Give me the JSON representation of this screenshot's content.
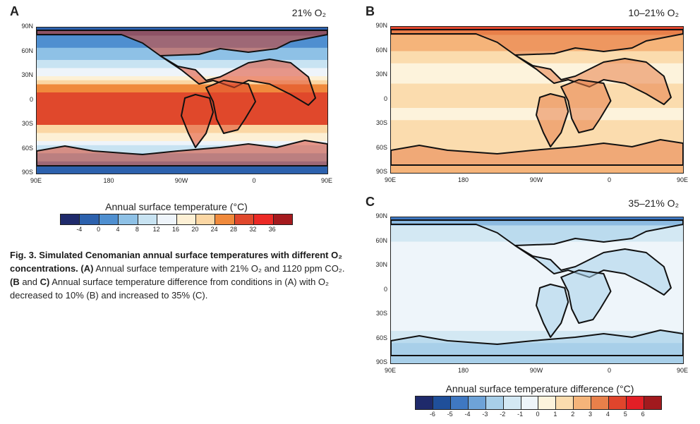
{
  "caption": {
    "fig_label": "Fig. 3.",
    "title": "Simulated Cenomanian annual surface temperatures with different O₂ concentrations.",
    "part_a_ref": "(A)",
    "part_a_text": " Annual surface temperature with 21% O₂ and 1120 ppm CO₂.",
    "part_bc_ref_b": "(B",
    "part_bc_and": " and ",
    "part_bc_ref_c": "C)",
    "part_bc_text": " Annual surface temperature difference from conditions in (A) with O₂ decreased to 10% (B) and increased to 35% (C)."
  },
  "colorbar_a": {
    "title": "Annual surface temperature (°C)",
    "labels": [
      "-4",
      "0",
      "4",
      "8",
      "12",
      "16",
      "20",
      "24",
      "28",
      "32",
      "36"
    ],
    "colors": [
      "#1f2a6b",
      "#2c61ad",
      "#4f8fd0",
      "#8ec1e6",
      "#c8e3f2",
      "#eef4fa",
      "#fdf0d5",
      "#fbd7a4",
      "#f08a3c",
      "#e0482c",
      "#ec2a26",
      "#a51a1e"
    ]
  },
  "colorbar_diff": {
    "title": "Annual surface temperature difference (°C)",
    "labels": [
      "-6",
      "-5",
      "-4",
      "-3",
      "-2",
      "-1",
      "0",
      "1",
      "2",
      "3",
      "4",
      "5",
      "6"
    ],
    "colors": [
      "#1f2a6b",
      "#1f4f9a",
      "#3f78c2",
      "#6ea3d8",
      "#a8cfe9",
      "#d3e8f3",
      "#eef5fa",
      "#fdf3dc",
      "#fbdcae",
      "#f5b47a",
      "#e8804a",
      "#e0452c",
      "#e21f26",
      "#a11a1e"
    ]
  },
  "chart_data": [
    {
      "panel": "A",
      "type": "heatmap",
      "title": "21% O₂",
      "xlabel": "",
      "ylabel": "",
      "x_ticks": [
        "90E",
        "180",
        "90W",
        "0",
        "90E"
      ],
      "y_ticks": [
        "90N",
        "60N",
        "30N",
        "0",
        "30S",
        "60S",
        "90S"
      ],
      "variable": "Annual surface temperature (°C)",
      "zonal_bands_lat_top": [
        90,
        80,
        65,
        50,
        40,
        30,
        25,
        20,
        10,
        -20,
        -30,
        -40,
        -50,
        -55,
        -65,
        -75,
        -80
      ],
      "zonal_band_values": [
        -4,
        0,
        4,
        8,
        12,
        16,
        20,
        24,
        28,
        28,
        20,
        16,
        12,
        8,
        4,
        0,
        -4
      ]
    },
    {
      "panel": "B",
      "type": "heatmap",
      "title": "10–21% O₂",
      "xlabel": "",
      "ylabel": "",
      "x_ticks": [
        "90E",
        "180",
        "90W",
        "0",
        "90E"
      ],
      "y_ticks": [
        "90N",
        "60N",
        "30N",
        "0",
        "30S",
        "60S",
        "90S"
      ],
      "variable": "Annual surface temperature difference (°C)",
      "zonal_bands_lat_top": [
        90,
        85,
        80,
        60,
        45,
        20,
        10,
        -10,
        -25,
        -50,
        -80
      ],
      "zonal_band_values": [
        4,
        3,
        2,
        1,
        0,
        1,
        1,
        0,
        1,
        1,
        2
      ]
    },
    {
      "panel": "C",
      "type": "heatmap",
      "title": "35–21% O₂",
      "xlabel": "",
      "ylabel": "",
      "x_ticks": [
        "90E",
        "180",
        "90W",
        "0",
        "90E"
      ],
      "y_ticks": [
        "90N",
        "60N",
        "30N",
        "0",
        "30S",
        "60S",
        "90S"
      ],
      "variable": "Annual surface temperature difference (°C)",
      "zonal_bands_lat_top": [
        90,
        85,
        80,
        60,
        45,
        20,
        10,
        -10,
        -25,
        -50,
        -65,
        -80
      ],
      "zonal_band_values": [
        -5,
        -4,
        -2,
        -1,
        -1,
        -1,
        -1,
        -1,
        -1,
        -2,
        -3,
        -3
      ]
    }
  ]
}
